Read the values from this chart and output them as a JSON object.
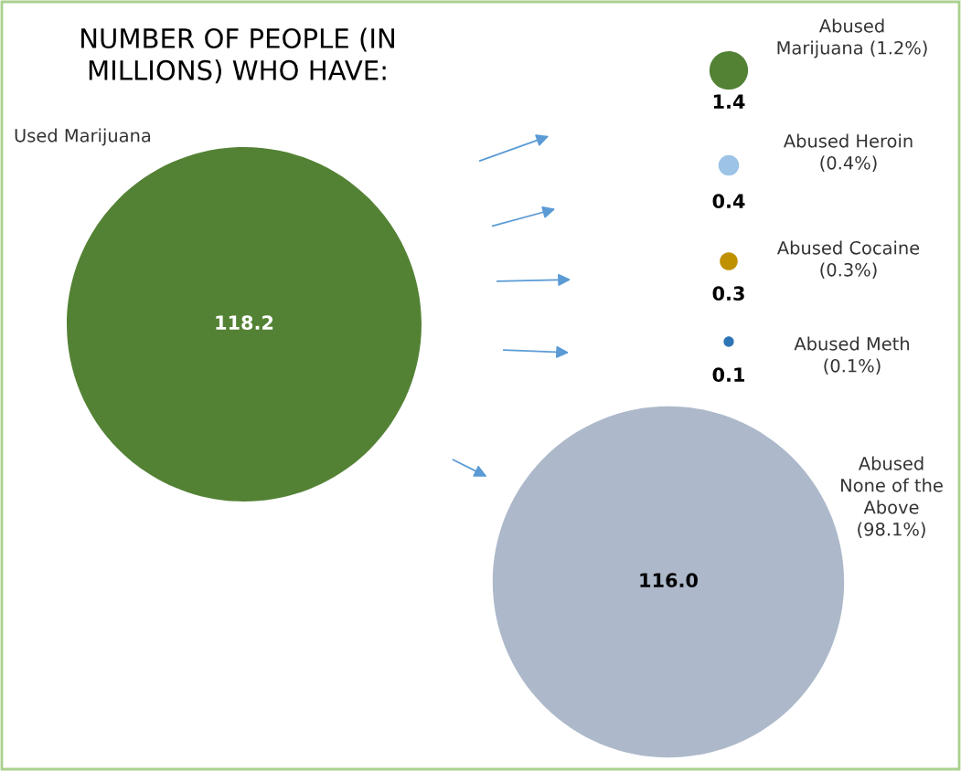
{
  "chart_data": {
    "type": "other",
    "title": "NUMBER OF PEOPLE (IN\nMILLIONS) WHO HAVE:",
    "categories": [
      "Used Marijuana",
      "Abused\nMarijuana (1.2%)",
      "Abused Heroin\n(0.4%)",
      "Abused Cocaine\n(0.3%)",
      "Abused Meth\n(0.1%)",
      "Abused\nNone of the\nAbove\n(98.1%)"
    ],
    "values": [
      118.2,
      1.4,
      0.4,
      0.3,
      0.1,
      116.0
    ],
    "value_labels": [
      "118.2",
      "1.4",
      "0.4",
      "0.3",
      "0.1",
      "116.0"
    ],
    "colors": [
      "#548235",
      "#548235",
      "#9dc3e6",
      "#bf9000",
      "#2e75b6",
      "#adb9ca"
    ]
  }
}
